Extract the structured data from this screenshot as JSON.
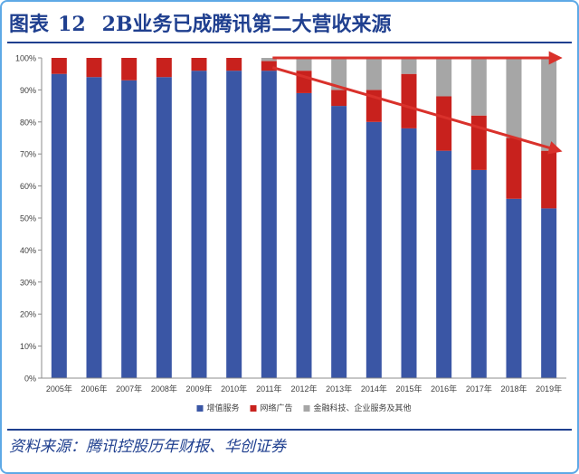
{
  "figure": {
    "label": "图表",
    "number": "12",
    "title": "2B业务已成腾讯第二大营收来源"
  },
  "source": "资料来源：腾讯控股历年财报、华创证券",
  "colors": {
    "series": [
      "#3a56a5",
      "#c8211d",
      "#a6a6a6"
    ],
    "arrow": "#d9312b",
    "title": "#1f3f8f"
  },
  "chart_data": {
    "type": "bar",
    "stacked": true,
    "percent": true,
    "categories": [
      "2005年",
      "2006年",
      "2007年",
      "2008年",
      "2009年",
      "2010年",
      "2011年",
      "2012年",
      "2013年",
      "2014年",
      "2015年",
      "2016年",
      "2017年",
      "2018年",
      "2019年"
    ],
    "series": [
      {
        "name": "增值服务",
        "values": [
          95,
          94,
          93,
          94,
          96,
          96,
          96,
          89,
          85,
          80,
          78,
          71,
          65,
          56,
          53
        ]
      },
      {
        "name": "网络广告",
        "values": [
          5,
          6,
          7,
          6,
          4,
          4,
          3,
          7,
          5,
          10,
          17,
          17,
          17,
          19,
          18
        ]
      },
      {
        "name": "金融科技、企业服务及其他",
        "values": [
          0,
          0,
          0,
          0,
          0,
          0,
          1,
          4,
          10,
          10,
          5,
          12,
          18,
          25,
          29
        ]
      }
    ],
    "yticks": [
      "0%",
      "10%",
      "20%",
      "30%",
      "40%",
      "50%",
      "60%",
      "70%",
      "80%",
      "90%",
      "100%"
    ],
    "ylim": [
      0,
      100
    ],
    "legend_position": "bottom",
    "annotations": [
      {
        "type": "arrow",
        "from": {
          "category": "2011年",
          "value": 100
        },
        "to": {
          "category": "2019年",
          "value": 100
        }
      },
      {
        "type": "arrow",
        "from": {
          "category": "2011年",
          "value": 97
        },
        "to": {
          "category": "2019年",
          "value": 71
        }
      }
    ]
  }
}
